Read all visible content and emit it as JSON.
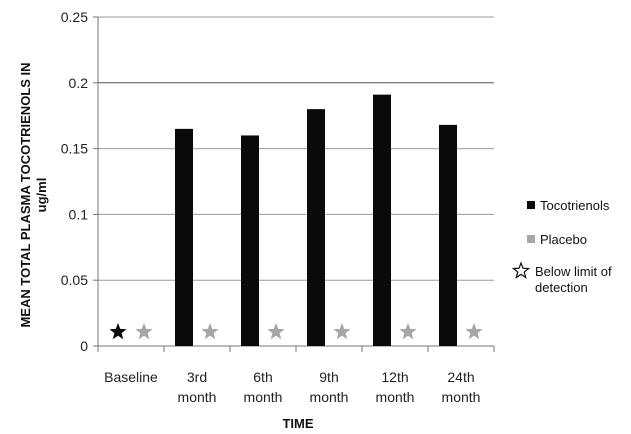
{
  "chart_data": {
    "type": "bar",
    "title": "",
    "xlabel": "TIME",
    "ylabel": [
      "MEAN TOTAL PLASMA TOCOTRIENOLS IN",
      "ug/ml"
    ],
    "ylim": [
      0,
      0.25
    ],
    "yticks": [
      "0",
      "0.05",
      "0.1",
      "0.15",
      "0.2",
      "0.25"
    ],
    "categories": [
      [
        "Baseline"
      ],
      [
        "3rd",
        "month"
      ],
      [
        "6th",
        "month"
      ],
      [
        "9th",
        "month"
      ],
      [
        "12th",
        "month"
      ],
      [
        "24th",
        "month"
      ]
    ],
    "series": [
      {
        "name": "Tocotrienols",
        "color": "#0a0a0a",
        "values": [
          null,
          0.165,
          0.16,
          0.18,
          0.191,
          0.168
        ],
        "below_detection": [
          true,
          false,
          false,
          false,
          false,
          false
        ]
      },
      {
        "name": "Placebo",
        "color": "#a6a6a6",
        "values": [
          null,
          null,
          null,
          null,
          null,
          null
        ],
        "below_detection": [
          true,
          true,
          true,
          true,
          true,
          true
        ]
      }
    ],
    "legend_extra": "Below limit of detection",
    "legend_position": "right",
    "grid": "horizontal"
  }
}
